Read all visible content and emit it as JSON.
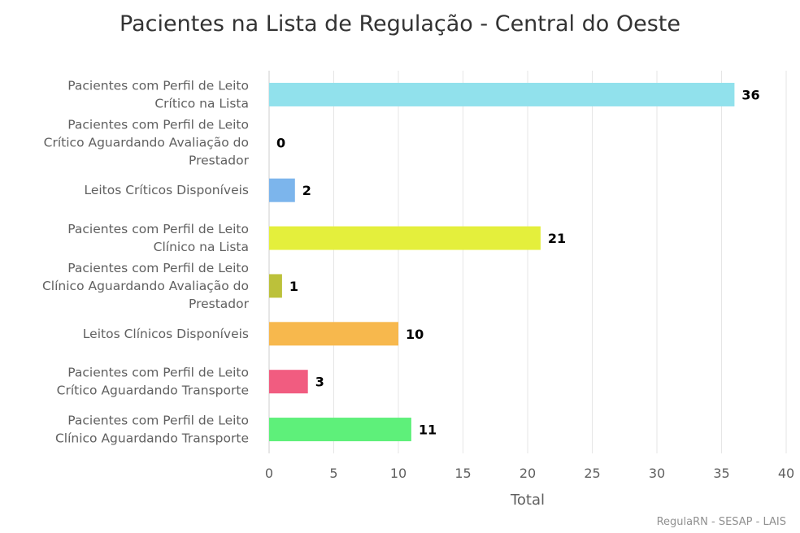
{
  "chart_data": {
    "type": "bar",
    "orientation": "horizontal",
    "title": "Pacientes na Lista de Regulação - Central do Oeste",
    "xlabel": "Total",
    "categories": [
      [
        "Pacientes com Perfil de Leito",
        "Crítico na Lista"
      ],
      [
        "Pacientes com Perfil de Leito",
        "Crítico Aguardando Avaliação do",
        "Prestador"
      ],
      [
        "Leitos Críticos Disponíveis"
      ],
      [
        "Pacientes com Perfil de Leito",
        "Clínico na Lista"
      ],
      [
        "Pacientes com Perfil de Leito",
        "Clínico Aguardando Avaliação do",
        "Prestador"
      ],
      [
        "Leitos Clínicos Disponíveis"
      ],
      [
        "Pacientes com Perfil de Leito",
        "Crítico Aguardando Transporte"
      ],
      [
        "Pacientes com Perfil de Leito",
        "Clínico Aguardando Transporte"
      ]
    ],
    "values": [
      36,
      0,
      2,
      21,
      1,
      10,
      3,
      11
    ],
    "colors": [
      "#91e1ec",
      "#7cb5ec",
      "#7cb5ec",
      "#e4ef3c",
      "#bcc13a",
      "#f7b84d",
      "#f15c80",
      "#5ef07a"
    ],
    "xlim": [
      0,
      40
    ],
    "ticks": [
      0,
      5,
      10,
      15,
      20,
      25,
      30,
      35,
      40
    ],
    "grid": true,
    "data_labels": true,
    "legend": "none"
  },
  "credits": "RegulaRN - SESAP - LAIS"
}
